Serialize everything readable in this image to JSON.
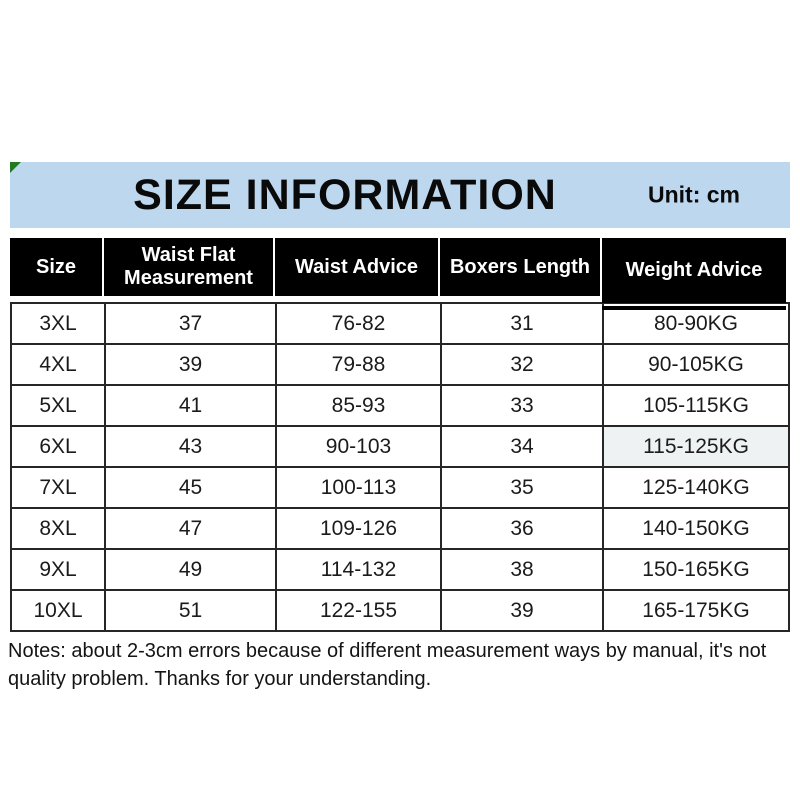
{
  "chart_data": {
    "type": "table",
    "title": "SIZE INFORMATION",
    "unit": "Unit: cm",
    "columns": [
      "Size",
      "Waist Flat Measurement",
      "Waist Advice",
      "Boxers Length",
      "Weight Advice"
    ],
    "rows": [
      [
        "3XL",
        "37",
        "76-82",
        "31",
        "80-90KG"
      ],
      [
        "4XL",
        "39",
        "79-88",
        "32",
        "90-105KG"
      ],
      [
        "5XL",
        "41",
        "85-93",
        "33",
        "105-115KG"
      ],
      [
        "6XL",
        "43",
        "90-103",
        "34",
        "115-125KG"
      ],
      [
        "7XL",
        "45",
        "100-113",
        "35",
        "125-140KG"
      ],
      [
        "8XL",
        "47",
        "109-126",
        "36",
        "140-150KG"
      ],
      [
        "9XL",
        "49",
        "114-132",
        "38",
        "150-165KG"
      ],
      [
        "10XL",
        "51",
        "122-155",
        "39",
        "165-175KG"
      ]
    ],
    "notes": "Notes: about 2-3cm errors because of different measurement ways by manual, it's not quality problem. Thanks for your understanding.",
    "layout": {
      "header_fill": "black",
      "grid": "on",
      "legend": "none"
    }
  },
  "style": {
    "banner_bg": "#bdd7ee",
    "corner_marker_green": "#1f7b1f",
    "header_bg": "#000000",
    "header_text": "#ffffff",
    "grid_line": "#262626",
    "body_text": "#1b1b1b",
    "shaded_cell_bg": "#eff2f3"
  }
}
